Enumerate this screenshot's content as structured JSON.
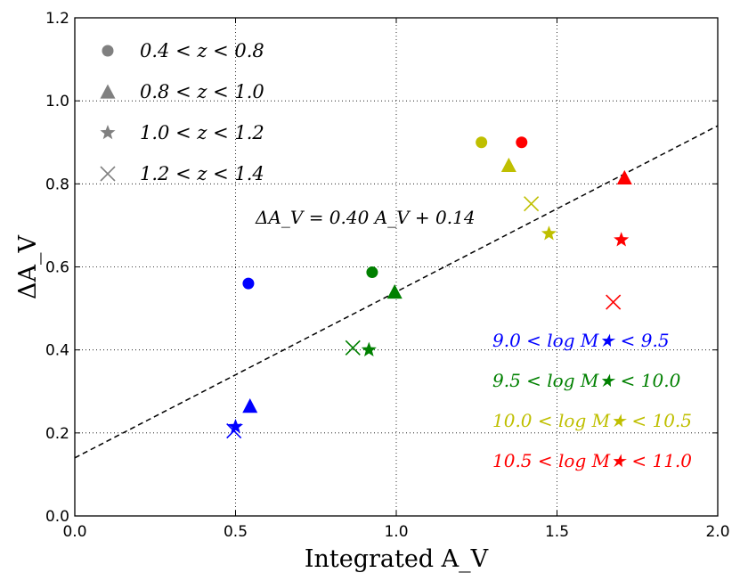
{
  "chart_data": {
    "type": "scatter",
    "xlabel": "Integrated A_V",
    "ylabel": "ΔA_V",
    "xlim": [
      0.0,
      2.0
    ],
    "ylim": [
      0.0,
      1.2
    ],
    "xticks": [
      "0.0",
      "0.5",
      "1.0",
      "1.5",
      "2.0"
    ],
    "yticks": [
      "0.0",
      "0.2",
      "0.4",
      "0.6",
      "0.8",
      "1.0",
      "1.2"
    ],
    "xtick_values": [
      0.0,
      0.5,
      1.0,
      1.5,
      2.0
    ],
    "ytick_values": [
      0.0,
      0.2,
      0.4,
      0.6,
      0.8,
      1.0,
      1.2
    ],
    "grid": true,
    "legend_placement": "top-left",
    "marker_legend": [
      {
        "marker": "circle",
        "label": "0.4 < z < 0.8"
      },
      {
        "marker": "triangle",
        "label": "0.8 < z < 1.0"
      },
      {
        "marker": "star",
        "label": "1.0 < z < 1.2"
      },
      {
        "marker": "x",
        "label": "1.2 < z < 1.4"
      }
    ],
    "fit_line": {
      "label": "ΔA_V = 0.40 A_V + 0.14",
      "slope": 0.4,
      "intercept": 0.14,
      "style": "dashed",
      "color": "#000000"
    },
    "groups": [
      {
        "label": "9.0 < log M★ < 9.5",
        "color": "#0000ff",
        "points": [
          {
            "marker": "circle",
            "x": 0.54,
            "y": 0.56
          },
          {
            "marker": "triangle",
            "x": 0.545,
            "y": 0.265
          },
          {
            "marker": "star",
            "x": 0.5,
            "y": 0.215
          },
          {
            "marker": "x",
            "x": 0.495,
            "y": 0.205
          }
        ]
      },
      {
        "label": "9.5 < log M★ < 10.0",
        "color": "#008000",
        "points": [
          {
            "marker": "circle",
            "x": 0.925,
            "y": 0.587
          },
          {
            "marker": "triangle",
            "x": 0.995,
            "y": 0.54
          },
          {
            "marker": "star",
            "x": 0.915,
            "y": 0.4
          },
          {
            "marker": "x",
            "x": 0.865,
            "y": 0.405
          }
        ]
      },
      {
        "label": "10.0 < log M★ < 10.5",
        "color": "#bfbf00",
        "points": [
          {
            "marker": "circle",
            "x": 1.265,
            "y": 0.9
          },
          {
            "marker": "triangle",
            "x": 1.35,
            "y": 0.845
          },
          {
            "marker": "star",
            "x": 1.475,
            "y": 0.68
          },
          {
            "marker": "x",
            "x": 1.42,
            "y": 0.752
          }
        ]
      },
      {
        "label": "10.5 < log M★ < 11.0",
        "color": "#ff0000",
        "points": [
          {
            "marker": "circle",
            "x": 1.39,
            "y": 0.9
          },
          {
            "marker": "triangle",
            "x": 1.71,
            "y": 0.815
          },
          {
            "marker": "star",
            "x": 1.7,
            "y": 0.665
          },
          {
            "marker": "x",
            "x": 1.675,
            "y": 0.515
          }
        ]
      }
    ]
  }
}
